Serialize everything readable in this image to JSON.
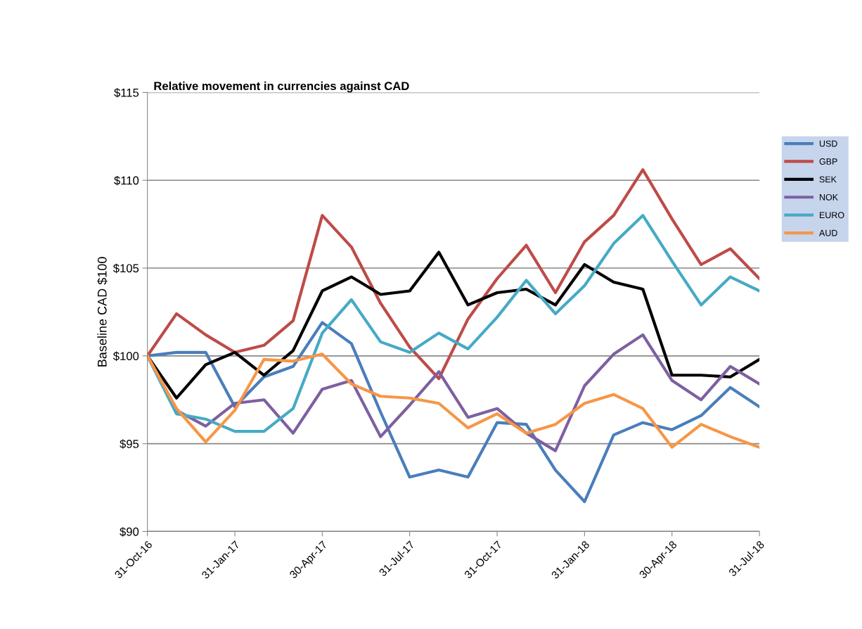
{
  "chart_data": {
    "type": "line",
    "title": "Relative movement in currencies against CAD",
    "ylabel": "Baseline CAD $100",
    "categories": [
      "31-Oct-16",
      null,
      null,
      "31-Jan-17",
      null,
      null,
      "30-Apr-17",
      null,
      null,
      "31-Jul-17",
      null,
      null,
      "31-Oct-17",
      null,
      null,
      "31-Jan-18",
      null,
      null,
      "30-Apr-18",
      null,
      null,
      "31-Jul-18"
    ],
    "series": [
      {
        "name": "USD",
        "color": "#4a7ebb",
        "values": [
          100,
          100.2,
          100.2,
          97.1,
          98.8,
          99.4,
          101.9,
          100.7,
          96.8,
          93.1,
          93.5,
          93.1,
          96.2,
          96.1,
          93.5,
          91.7,
          95.5,
          96.2,
          95.8,
          96.6,
          98.2,
          97.1
        ]
      },
      {
        "name": "GBP",
        "color": "#be4b48",
        "values": [
          100,
          102.4,
          101.2,
          100.2,
          100.6,
          102.0,
          108.0,
          106.2,
          103.0,
          100.5,
          98.7,
          102.1,
          104.4,
          106.3,
          103.6,
          106.5,
          108.0,
          110.6,
          107.8,
          105.2,
          106.1,
          104.4
        ]
      },
      {
        "name": "SEK",
        "color": "#000000",
        "values": [
          100,
          97.6,
          99.5,
          100.2,
          98.9,
          100.3,
          103.7,
          104.5,
          103.5,
          103.7,
          105.9,
          102.9,
          103.6,
          103.8,
          102.9,
          105.2,
          104.2,
          103.8,
          98.9,
          98.9,
          98.8,
          99.8
        ]
      },
      {
        "name": "NOK",
        "color": "#7d60a0",
        "values": [
          100,
          96.9,
          96.0,
          97.3,
          97.5,
          95.6,
          98.1,
          98.6,
          95.4,
          97.2,
          99.1,
          96.5,
          97.0,
          95.6,
          94.6,
          98.3,
          100.1,
          101.2,
          98.6,
          97.5,
          99.4,
          98.4
        ]
      },
      {
        "name": "EURO",
        "color": "#46aac5",
        "values": [
          100,
          96.7,
          96.4,
          95.7,
          95.7,
          97.0,
          101.3,
          103.2,
          100.8,
          100.2,
          101.3,
          100.4,
          102.2,
          104.3,
          102.4,
          104.0,
          106.4,
          108.0,
          105.4,
          102.9,
          104.5,
          103.7
        ]
      },
      {
        "name": "AUD",
        "color": "#f79646",
        "values": [
          100,
          97.0,
          95.1,
          96.9,
          99.8,
          99.7,
          100.1,
          98.4,
          97.7,
          97.6,
          97.3,
          95.9,
          96.7,
          95.6,
          96.1,
          97.3,
          97.8,
          97.0,
          94.8,
          96.1,
          95.4,
          94.8
        ]
      }
    ],
    "ylim": [
      90,
      115
    ],
    "yticks": [
      {
        "value": 90,
        "label": "$90"
      },
      {
        "value": 95,
        "label": "$95"
      },
      {
        "value": 100,
        "label": "$100"
      },
      {
        "value": 105,
        "label": "$105"
      },
      {
        "value": 110,
        "label": "$110"
      },
      {
        "value": 115,
        "label": "$115"
      }
    ],
    "grid": "y",
    "legend": "right",
    "marker": "none",
    "line_style": "solid"
  }
}
